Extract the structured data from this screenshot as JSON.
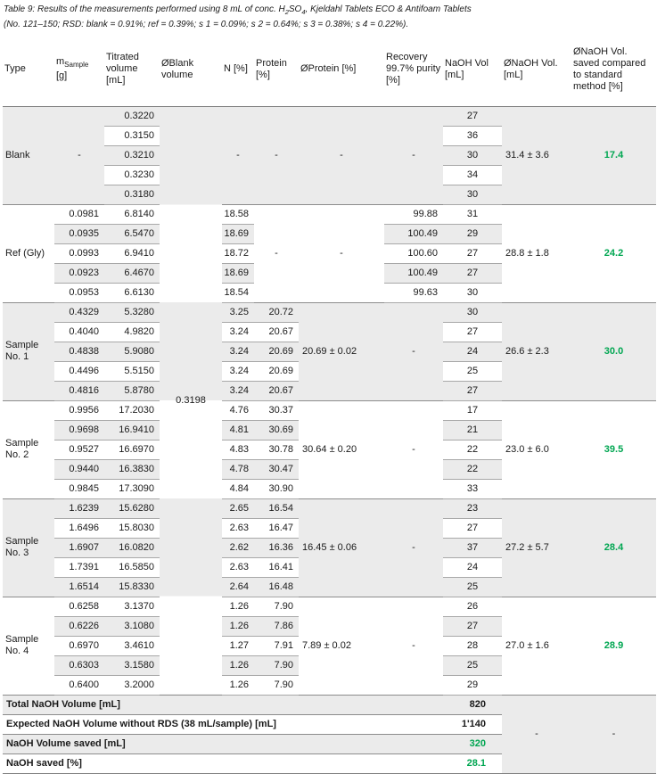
{
  "caption": {
    "p1": "Table 9: Results of the measurements performed using 8 mL of conc. H",
    "s1": "2",
    "p2": "SO",
    "s2": "4",
    "p3": ", Kjeldahl Tablets ECO & Antifoam Tablets",
    "line2": "(No. 121–150; RSD: blank = 0.91%; ref = 0.39%; s 1 = 0.09%; s 2 = 0.64%; s 3 = 0.38%; s 4 = 0.22%)."
  },
  "columns": {
    "type": "Type",
    "mass_main": "m",
    "mass_sub": "Sample",
    "mass_unit": "[g]",
    "titrated": "Titrated volume [mL]",
    "blank": "ØBlank volume",
    "n": "N [%]",
    "protein": "Protein [%]",
    "avg_protein": "ØProtein [%]",
    "recovery": "Recovery 99.7% purity [%]",
    "naoh": "NaOH Vol [mL]",
    "avg_naoh": "ØNaOH Vol. [mL]",
    "saved": "ØNaOH Vol. saved compared to standard method [%]"
  },
  "blank_volume": "0.3198",
  "sections": [
    {
      "type": "Blank",
      "base": "gray",
      "mass": "-",
      "titrated": [
        "0.3220",
        "0.3150",
        "0.3210",
        "0.3230",
        "0.3180"
      ],
      "n": "-",
      "protein": "-",
      "avg_protein": "-",
      "recovery": "-",
      "naoh": [
        "27",
        "36",
        "30",
        "34",
        "30"
      ],
      "avg_naoh": "31.4 ± 3.6",
      "saved": "17.4"
    },
    {
      "type": "Ref (Gly)",
      "base": "white",
      "mass": [
        "0.0981",
        "0.0935",
        "0.0993",
        "0.0923",
        "0.0953"
      ],
      "titrated": [
        "6.8140",
        "6.5470",
        "6.9410",
        "6.4670",
        "6.6130"
      ],
      "n": [
        "18.58",
        "18.69",
        "18.72",
        "18.69",
        "18.54"
      ],
      "protein": "-",
      "avg_protein": "-",
      "recovery": [
        "99.88",
        "100.49",
        "100.60",
        "100.49",
        "99.63"
      ],
      "naoh": [
        "31",
        "29",
        "27",
        "27",
        "30"
      ],
      "avg_naoh": "28.8 ± 1.8",
      "saved": "24.2"
    },
    {
      "type": "Sample No. 1",
      "base": "gray",
      "mass": [
        "0.4329",
        "0.4040",
        "0.4838",
        "0.4496",
        "0.4816"
      ],
      "titrated": [
        "5.3280",
        "4.9820",
        "5.9080",
        "5.5150",
        "5.8780"
      ],
      "n": [
        "3.25",
        "3.24",
        "3.24",
        "3.24",
        "3.24"
      ],
      "protein": [
        "20.72",
        "20.67",
        "20.69",
        "20.69",
        "20.67"
      ],
      "avg_protein": "20.69 ± 0.02",
      "recovery": "-",
      "naoh": [
        "30",
        "27",
        "24",
        "25",
        "27"
      ],
      "avg_naoh": "26.6 ± 2.3",
      "saved": "30.0"
    },
    {
      "type": "Sample No. 2",
      "base": "white",
      "mass": [
        "0.9956",
        "0.9698",
        "0.9527",
        "0.9440",
        "0.9845"
      ],
      "titrated": [
        "17.2030",
        "16.9410",
        "16.6970",
        "16.3830",
        "17.3090"
      ],
      "n": [
        "4.76",
        "4.81",
        "4.83",
        "4.78",
        "4.84"
      ],
      "protein": [
        "30.37",
        "30.69",
        "30.78",
        "30.47",
        "30.90"
      ],
      "avg_protein": "30.64 ± 0.20",
      "recovery": "-",
      "naoh": [
        "17",
        "21",
        "22",
        "22",
        "33"
      ],
      "avg_naoh": "23.0 ± 6.0",
      "saved": "39.5"
    },
    {
      "type": "Sample No. 3",
      "base": "gray",
      "mass": [
        "1.6239",
        "1.6496",
        "1.6907",
        "1.7391",
        "1.6514"
      ],
      "titrated": [
        "15.6280",
        "15.8030",
        "16.0820",
        "16.5850",
        "15.8330"
      ],
      "n": [
        "2.65",
        "2.63",
        "2.62",
        "2.63",
        "2.64"
      ],
      "protein": [
        "16.54",
        "16.47",
        "16.36",
        "16.41",
        "16.48"
      ],
      "avg_protein": "16.45 ± 0.06",
      "recovery": "-",
      "naoh": [
        "23",
        "27",
        "37",
        "24",
        "25"
      ],
      "avg_naoh": "27.2 ± 5.7",
      "saved": "28.4"
    },
    {
      "type": "Sample No. 4",
      "base": "white",
      "mass": [
        "0.6258",
        "0.6226",
        "0.6970",
        "0.6303",
        "0.6400"
      ],
      "titrated": [
        "3.1370",
        "3.1080",
        "3.4610",
        "3.1580",
        "3.2000"
      ],
      "n": [
        "1.26",
        "1.26",
        "1.27",
        "1.26",
        "1.26"
      ],
      "protein": [
        "7.90",
        "7.86",
        "7.91",
        "7.90",
        "7.90"
      ],
      "avg_protein": "7.89 ± 0.02",
      "recovery": "-",
      "naoh": [
        "26",
        "27",
        "28",
        "25",
        "29"
      ],
      "avg_naoh": "27.0 ± 1.6",
      "saved": "28.9"
    }
  ],
  "summary": {
    "rows": [
      {
        "label": "Total NaOH Volume [mL]",
        "value": "820",
        "green": false
      },
      {
        "label": "Expected NaOH Volume without RDS (38 mL/sample) [mL]",
        "value": "1'140",
        "green": false
      },
      {
        "label": "NaOH Volume saved [mL]",
        "value": "320",
        "green": true
      },
      {
        "label": "NaOH saved [%]",
        "value": "28.1",
        "green": true
      }
    ],
    "avg_naoh_dash": "-",
    "saved_dash": "-"
  },
  "colors": {
    "green": "#00A651",
    "shade": "#ebebeb",
    "row_line": "#a8a8a8",
    "section_line": "#8c8c8c"
  }
}
